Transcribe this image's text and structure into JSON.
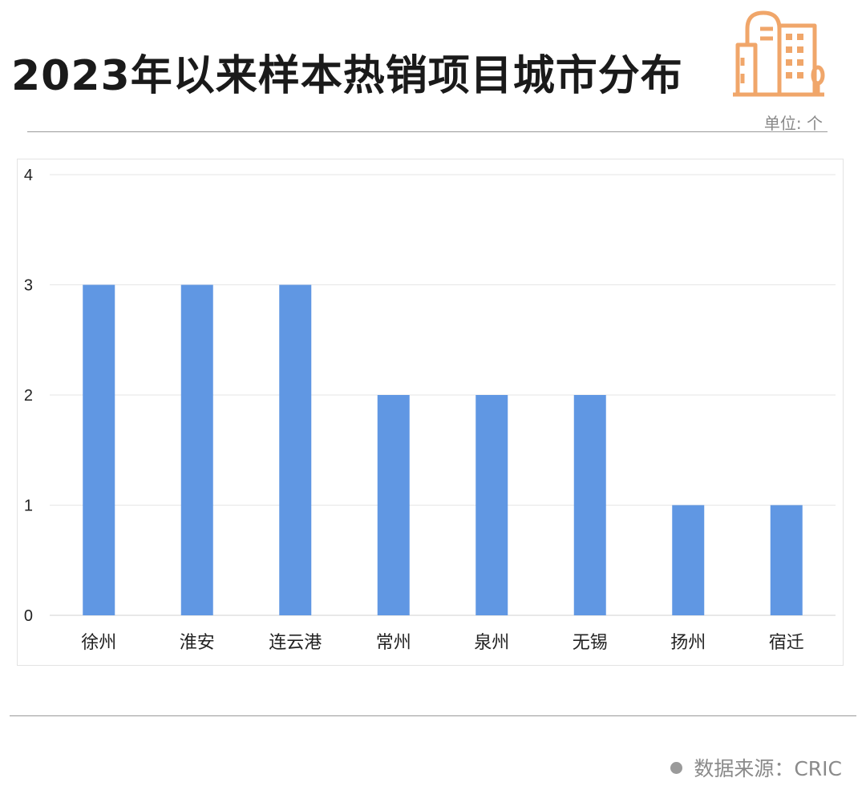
{
  "title": "2023年以来样本热销项目城市分布",
  "unit": "单位: 个",
  "source": "数据来源：CRIC",
  "colors": {
    "bar": "#6097e3",
    "icon": "#f0a66a",
    "grid": "#e6e6e6"
  },
  "icons": {
    "header": "building-icon",
    "source": "dot-icon"
  },
  "chart_data": {
    "type": "bar",
    "categories": [
      "徐州",
      "淮安",
      "连云港",
      "常州",
      "泉州",
      "无锡",
      "扬州",
      "宿迁"
    ],
    "values": [
      3,
      3,
      3,
      2,
      2,
      2,
      1,
      1
    ],
    "ylim": [
      0,
      4
    ],
    "yticks": [
      0,
      1,
      2,
      3,
      4
    ],
    "grid": true,
    "legend": "none"
  }
}
